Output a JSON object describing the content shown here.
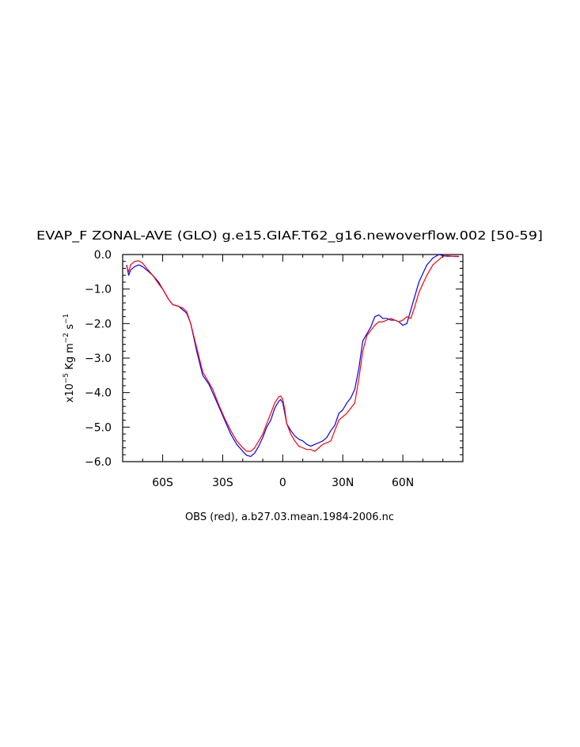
{
  "chart_data": {
    "type": "line",
    "title": "EVAP_F ZONAL-AVE (GLO) g.e15.GIAF.T62_g16.newoverflow.002 [50-59]",
    "xlabel": "OBS (red), a.b27.03.mean.1984-2006.nc",
    "ylabel": "x10^-5 Kg m^-2 s^-1",
    "ylabel_parts": {
      "prefix": "x10",
      "exp1": "−5",
      "mid": " Kg m",
      "exp2": "−2",
      "mid2": " s",
      "exp3": "−1"
    },
    "xlim": [
      -80,
      90
    ],
    "ylim": [
      -6.0,
      0.0
    ],
    "x_ticks": [
      {
        "value": -60,
        "label": "60S"
      },
      {
        "value": -30,
        "label": "30S"
      },
      {
        "value": 0,
        "label": "0"
      },
      {
        "value": 30,
        "label": "30N"
      },
      {
        "value": 60,
        "label": "60N"
      }
    ],
    "y_ticks": [
      {
        "value": 0.0,
        "label": "0.0"
      },
      {
        "value": -1.0,
        "label": "−1.0"
      },
      {
        "value": -2.0,
        "label": "−2.0"
      },
      {
        "value": -3.0,
        "label": "−3.0"
      },
      {
        "value": -4.0,
        "label": "−4.0"
      },
      {
        "value": -5.0,
        "label": "−5.0"
      },
      {
        "value": -6.0,
        "label": "−6.0"
      }
    ],
    "grid": false,
    "series": [
      {
        "color": "#0000ff",
        "x": [
          -78,
          -77,
          -76,
          -74,
          -72,
          -70,
          -68,
          -65,
          -62,
          -60,
          -57,
          -55,
          -52,
          -50,
          -48,
          -46,
          -43,
          -40,
          -37,
          -35,
          -32,
          -29,
          -26,
          -23,
          -20,
          -18,
          -16,
          -14,
          -12,
          -10,
          -8,
          -6,
          -4,
          -2,
          -1,
          0,
          1,
          2,
          4,
          6,
          8,
          10,
          12,
          14,
          16,
          18,
          20,
          22,
          24,
          26,
          28,
          30,
          32,
          34,
          36,
          38,
          40,
          42,
          44,
          46,
          48,
          50,
          52,
          54,
          56,
          58,
          60,
          62,
          64,
          66,
          68,
          70,
          72,
          75,
          78,
          80,
          82,
          85,
          88
        ],
        "y": [
          -0.3,
          -0.6,
          -0.45,
          -0.35,
          -0.3,
          -0.35,
          -0.45,
          -0.6,
          -0.8,
          -1.0,
          -1.3,
          -1.45,
          -1.5,
          -1.6,
          -1.7,
          -2.0,
          -2.8,
          -3.5,
          -3.75,
          -4.0,
          -4.4,
          -4.8,
          -5.2,
          -5.5,
          -5.7,
          -5.82,
          -5.85,
          -5.75,
          -5.55,
          -5.3,
          -5.0,
          -4.8,
          -4.45,
          -4.25,
          -4.2,
          -4.3,
          -4.6,
          -4.9,
          -5.1,
          -5.25,
          -5.35,
          -5.4,
          -5.5,
          -5.55,
          -5.5,
          -5.45,
          -5.4,
          -5.3,
          -5.1,
          -4.95,
          -4.6,
          -4.5,
          -4.3,
          -4.15,
          -3.9,
          -3.3,
          -2.5,
          -2.3,
          -2.1,
          -1.8,
          -1.75,
          -1.85,
          -1.85,
          -1.9,
          -1.9,
          -1.95,
          -2.05,
          -2.0,
          -1.6,
          -1.2,
          -0.8,
          -0.55,
          -0.3,
          -0.1,
          0.0,
          -0.03,
          -0.05,
          -0.05,
          -0.06
        ]
      },
      {
        "color": "#ff0000",
        "x": [
          -78,
          -77,
          -76,
          -74,
          -72,
          -70,
          -68,
          -65,
          -62,
          -60,
          -57,
          -55,
          -52,
          -50,
          -48,
          -46,
          -43,
          -40,
          -37,
          -35,
          -32,
          -29,
          -26,
          -23,
          -20,
          -18,
          -16,
          -14,
          -12,
          -10,
          -8,
          -6,
          -4,
          -2,
          -1,
          0,
          1,
          2,
          4,
          6,
          8,
          10,
          12,
          14,
          16,
          18,
          20,
          22,
          24,
          26,
          28,
          30,
          32,
          34,
          36,
          38,
          40,
          42,
          44,
          46,
          48,
          50,
          52,
          54,
          56,
          58,
          60,
          62,
          64,
          66,
          68,
          70,
          72,
          75,
          78,
          80,
          82,
          85,
          88
        ],
        "y": [
          -0.35,
          -0.5,
          -0.3,
          -0.2,
          -0.18,
          -0.25,
          -0.4,
          -0.6,
          -0.85,
          -1.0,
          -1.3,
          -1.45,
          -1.5,
          -1.55,
          -1.65,
          -2.0,
          -2.7,
          -3.4,
          -3.7,
          -3.9,
          -4.35,
          -4.75,
          -5.1,
          -5.4,
          -5.6,
          -5.7,
          -5.7,
          -5.6,
          -5.4,
          -5.2,
          -4.9,
          -4.6,
          -4.3,
          -4.12,
          -4.1,
          -4.2,
          -4.5,
          -4.9,
          -5.2,
          -5.4,
          -5.55,
          -5.6,
          -5.65,
          -5.65,
          -5.7,
          -5.6,
          -5.5,
          -5.45,
          -5.4,
          -5.1,
          -4.8,
          -4.7,
          -4.6,
          -4.45,
          -4.3,
          -3.6,
          -2.8,
          -2.35,
          -2.2,
          -2.05,
          -1.95,
          -1.95,
          -1.9,
          -1.85,
          -1.9,
          -1.95,
          -1.9,
          -1.8,
          -1.85,
          -1.5,
          -1.1,
          -0.85,
          -0.6,
          -0.3,
          -0.15,
          -0.05,
          -0.03,
          -0.05,
          -0.05
        ]
      }
    ]
  }
}
